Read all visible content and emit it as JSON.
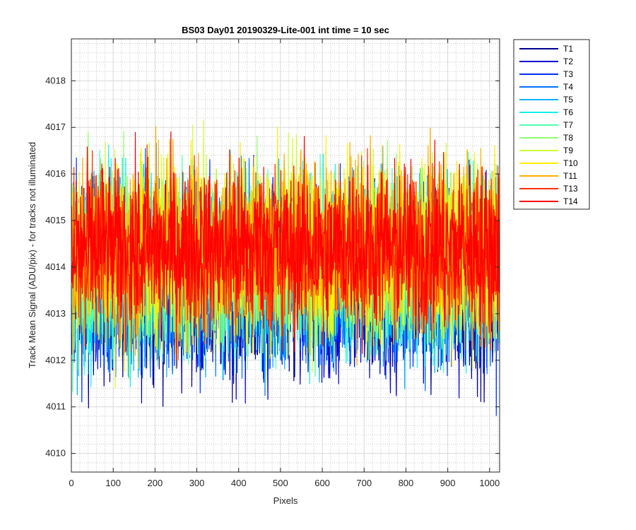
{
  "chart_data": {
    "type": "line",
    "title": "BS03 Day01 20190329-Lite-001 int time = 10 sec",
    "xlabel": "Pixels",
    "ylabel": "Track Mean Signal (ADU/pix) - for tracks not illuminated",
    "xlim": [
      0,
      1024
    ],
    "ylim": [
      4009.6,
      4018.9
    ],
    "x_ticks": [
      0,
      100,
      200,
      300,
      400,
      500,
      600,
      700,
      800,
      900,
      1000
    ],
    "y_ticks": [
      4010,
      4011,
      4012,
      4013,
      4014,
      4015,
      4016,
      4017,
      4018
    ],
    "x_tick_labels": [
      "0",
      "100",
      "200",
      "300",
      "400",
      "500",
      "600",
      "700",
      "800",
      "900",
      "1000"
    ],
    "y_tick_labels": [
      "4010",
      "4011",
      "4012",
      "4013",
      "4014",
      "4015",
      "4016",
      "4017",
      "4018"
    ],
    "grid": "major and minor",
    "legend_position": "outside-top-right",
    "series": [
      {
        "name": "T1",
        "color": "#00008f",
        "mean": 4013.5,
        "spread": 1.3
      },
      {
        "name": "T2",
        "color": "#0000d0",
        "mean": 4013.6,
        "spread": 1.3
      },
      {
        "name": "T3",
        "color": "#0030ff",
        "mean": 4013.7,
        "spread": 1.3
      },
      {
        "name": "T4",
        "color": "#0070ff",
        "mean": 4013.8,
        "spread": 1.3
      },
      {
        "name": "T5",
        "color": "#00b0ff",
        "mean": 4013.9,
        "spread": 1.3
      },
      {
        "name": "T6",
        "color": "#10f0ef",
        "mean": 4014.0,
        "spread": 1.3
      },
      {
        "name": "T7",
        "color": "#50ffaf",
        "mean": 4014.1,
        "spread": 1.3
      },
      {
        "name": "T8",
        "color": "#8fff70",
        "mean": 4014.2,
        "spread": 1.3
      },
      {
        "name": "T9",
        "color": "#cfff30",
        "mean": 4014.3,
        "spread": 1.3
      },
      {
        "name": "T10",
        "color": "#ffef00",
        "mean": 4014.4,
        "spread": 1.3
      },
      {
        "name": "T11",
        "color": "#ffaf00",
        "mean": 4014.4,
        "spread": 1.3
      },
      {
        "name": "T13",
        "color": "#ff3000",
        "mean": 4014.4,
        "spread": 1.2
      },
      {
        "name": "T14",
        "color": "#ff0000",
        "mean": 4014.4,
        "spread": 1.2
      }
    ],
    "n_points": 1024
  }
}
